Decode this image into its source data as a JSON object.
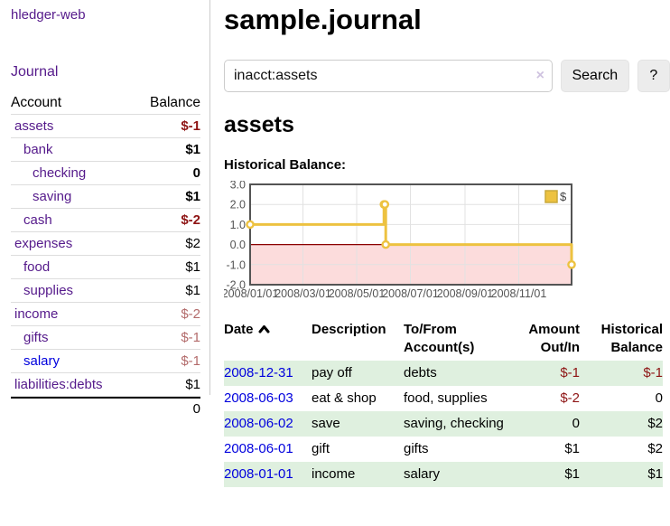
{
  "app": {
    "title": "hledger-web"
  },
  "palette": {
    "link_purple": "#551a8b",
    "link_blue": "#0000dd",
    "negative_strong": "#8e1414",
    "negative_muted": "#b36b6b",
    "row_green": "#dff0df",
    "series_gold": "#edc240",
    "chart_border": "#545454",
    "chart_grid": "#e2e2e2",
    "chart_zero_line": "#8b0000",
    "chart_negative_fill": "#fcdcdc"
  },
  "sidebar": {
    "journal_link": "Journal",
    "account_header": "Account",
    "balance_header": "Balance",
    "accounts": [
      {
        "name": "assets",
        "indent": 1,
        "bold": true,
        "link": "purple",
        "balance": "$-1",
        "balance_color": "neg-strong"
      },
      {
        "name": "bank",
        "indent": 2,
        "bold": true,
        "link": "purple",
        "balance": "$1",
        "balance_color": "black"
      },
      {
        "name": "checking",
        "indent": 3,
        "bold": true,
        "link": "purple",
        "balance": "0",
        "balance_color": "black"
      },
      {
        "name": "saving",
        "indent": 3,
        "bold": true,
        "link": "purple",
        "balance": "$1",
        "balance_color": "black"
      },
      {
        "name": "cash",
        "indent": 2,
        "bold": true,
        "link": "purple",
        "balance": "$-2",
        "balance_color": "neg-strong"
      },
      {
        "name": "expenses",
        "indent": 1,
        "bold": false,
        "link": "purple",
        "balance": "$2",
        "balance_color": "black"
      },
      {
        "name": "food",
        "indent": 2,
        "bold": false,
        "link": "purple",
        "balance": "$1",
        "balance_color": "black"
      },
      {
        "name": "supplies",
        "indent": 2,
        "bold": false,
        "link": "purple",
        "balance": "$1",
        "balance_color": "black"
      },
      {
        "name": "income",
        "indent": 1,
        "bold": false,
        "link": "purple",
        "balance": "$-2",
        "balance_color": "neg-muted"
      },
      {
        "name": "gifts",
        "indent": 2,
        "bold": false,
        "link": "purple",
        "balance": "$-1",
        "balance_color": "neg-muted"
      },
      {
        "name": "salary",
        "indent": 2,
        "bold": false,
        "link": "blue",
        "balance": "$-1",
        "balance_color": "neg-muted"
      },
      {
        "name": "liabilities:debts",
        "indent": 1,
        "bold": false,
        "link": "purple",
        "balance": "$1",
        "balance_color": "black"
      }
    ],
    "total": "0"
  },
  "main": {
    "title": "sample.journal",
    "search": {
      "value": "inacct:assets",
      "clear_icon": "×",
      "search_button": "Search",
      "help_button": "?"
    },
    "account_heading": "assets",
    "chart_label": "Historical Balance:"
  },
  "chart_data": {
    "type": "line",
    "title": "Historical Balance",
    "step": true,
    "legend": [
      {
        "label": "$",
        "color": "#edc240"
      }
    ],
    "legend_position": "top-right",
    "grid": true,
    "ylim": [
      -2,
      3
    ],
    "x_range_days": [
      0,
      365
    ],
    "points": [
      {
        "date": "2008-01-01",
        "day": 0,
        "value": 1
      },
      {
        "date": "2008-06-01",
        "day": 152,
        "value": 2
      },
      {
        "date": "2008-06-02",
        "day": 153,
        "value": 2
      },
      {
        "date": "2008-06-03",
        "day": 154,
        "value": 0
      },
      {
        "date": "2008-12-31",
        "day": 365,
        "value": -1
      }
    ],
    "x_ticks": [
      {
        "label": "2008/01/01",
        "day": 0
      },
      {
        "label": "2008/03/01",
        "day": 60
      },
      {
        "label": "2008/05/01",
        "day": 121
      },
      {
        "label": "2008/07/01",
        "day": 182
      },
      {
        "label": "2008/09/01",
        "day": 244
      },
      {
        "label": "2008/11/01",
        "day": 305
      }
    ],
    "y_ticks": [
      {
        "label": "3.0",
        "value": 3
      },
      {
        "label": "2.0",
        "value": 2
      },
      {
        "label": "1.0",
        "value": 1
      },
      {
        "label": "0.0",
        "value": 0
      },
      {
        "label": "-1.0",
        "value": -1
      },
      {
        "label": "-2.0",
        "value": -2
      }
    ],
    "negative_region": {
      "from": 0,
      "to": -2
    }
  },
  "register": {
    "headers": {
      "date": "Date",
      "description": "Description",
      "accounts": "To/From Account(s)",
      "amount": "Amount Out/In",
      "balance": "Historical Balance"
    },
    "rows": [
      {
        "date": "2008-12-31",
        "description": "pay off",
        "accounts": "debts",
        "amount": "$-1",
        "amount_negative": true,
        "balance": "$-1",
        "balance_negative": true
      },
      {
        "date": "2008-06-03",
        "description": "eat & shop",
        "accounts": "food, supplies",
        "amount": "$-2",
        "amount_negative": true,
        "balance": "0",
        "balance_negative": false
      },
      {
        "date": "2008-06-02",
        "description": "save",
        "accounts": "saving, checking",
        "amount": "0",
        "amount_negative": false,
        "balance": "$2",
        "balance_negative": false
      },
      {
        "date": "2008-06-01",
        "description": "gift",
        "accounts": "gifts",
        "amount": "$1",
        "amount_negative": false,
        "balance": "$2",
        "balance_negative": false
      },
      {
        "date": "2008-01-01",
        "description": "income",
        "accounts": "salary",
        "amount": "$1",
        "amount_negative": false,
        "balance": "$1",
        "balance_negative": false
      }
    ]
  }
}
